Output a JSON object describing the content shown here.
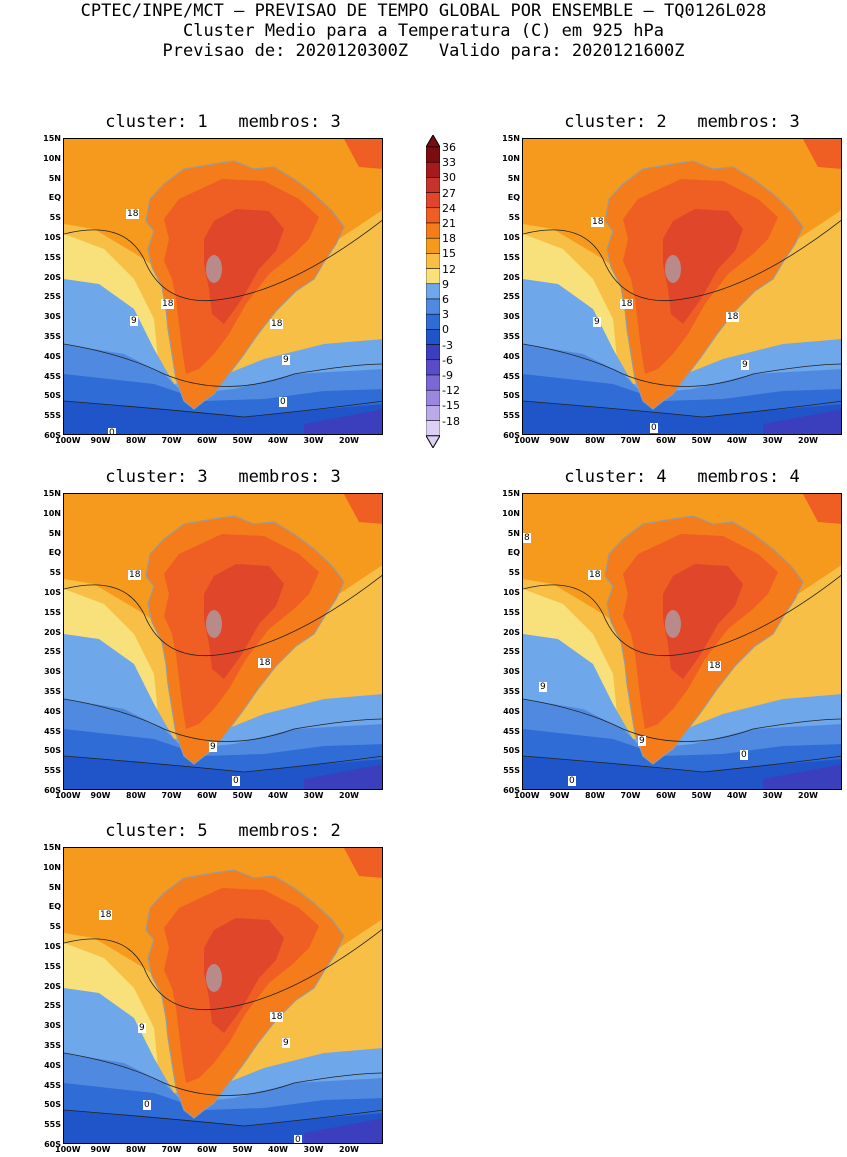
{
  "header": {
    "line1": "CPTEC/INPE/MCT – PREVISAO DE TEMPO GLOBAL POR ENSEMBLE – TQ0126L028",
    "line2": "Cluster Medio para a Temperatura (C) em 925 hPa",
    "line3": "Previsao de: 2020120300Z   Valido para: 2020121600Z"
  },
  "lat_labels": [
    "15N",
    "10N",
    "5N",
    "EQ",
    "5S",
    "10S",
    "15S",
    "20S",
    "25S",
    "30S",
    "35S",
    "40S",
    "45S",
    "50S",
    "55S",
    "60S"
  ],
  "lon_labels": [
    "100W",
    "90W",
    "80W",
    "70W",
    "60W",
    "50W",
    "40W",
    "30W",
    "20W"
  ],
  "panels": [
    {
      "title": "cluster: 1   membros: 3",
      "contour_labels": [
        "18",
        "18",
        "9",
        "18",
        "9",
        "0",
        "0"
      ]
    },
    {
      "title": "cluster: 2   membros: 3",
      "contour_labels": [
        "18",
        "18",
        "9",
        "18",
        "9",
        "0"
      ]
    },
    {
      "title": "cluster: 3   membros: 3",
      "contour_labels": [
        "18",
        "18",
        "9",
        "0"
      ]
    },
    {
      "title": "cluster: 4   membros: 4",
      "contour_labels": [
        "8",
        "18",
        "18",
        "9",
        "9",
        "0",
        "0"
      ]
    },
    {
      "title": "cluster: 5   membros: 2",
      "contour_labels": [
        "18",
        "18",
        "9",
        "9",
        "0",
        "0"
      ]
    }
  ],
  "colorbar": {
    "ticks": [
      "36",
      "33",
      "30",
      "27",
      "24",
      "21",
      "18",
      "15",
      "12",
      "9",
      "6",
      "3",
      "0",
      "-3",
      "-6",
      "-9",
      "-12",
      "-15",
      "-18"
    ],
    "colors": [
      "#7a0d10",
      "#a51a1c",
      "#c7332b",
      "#e0462a",
      "#ef5e22",
      "#f47c1b",
      "#f59a1c",
      "#f7bf45",
      "#f8e17a",
      "#6ea7ea",
      "#4f8ae0",
      "#2f6cd6",
      "#1f55c8",
      "#3b3fbe",
      "#5a4cc8",
      "#7a68d4",
      "#9a88df",
      "#bba9ea",
      "#ddd0f5"
    ],
    "tick_label_above_top": "36",
    "tick_label_below_bottom": "-18"
  }
}
